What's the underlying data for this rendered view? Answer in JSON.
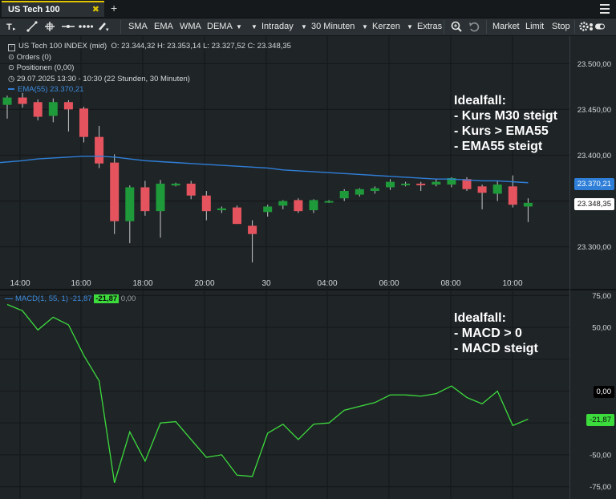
{
  "tab": {
    "title": "US Tech 100",
    "close_glyph": "✖",
    "add_glyph": "+"
  },
  "menu_icon": "hamburger-menu-icon",
  "toolbar": {
    "indicators": [
      "SMA",
      "EMA",
      "WMA",
      "DEMA"
    ],
    "interval": "Intraday",
    "period": "30 Minuten",
    "chart_type": "Kerzen",
    "extras": "Extras",
    "orders": [
      "Market",
      "Limit",
      "Stop"
    ],
    "icons": [
      "text-tool-icon",
      "line-tool-icon",
      "crosshair-tool-icon",
      "horizontal-line-icon",
      "dotted-line-icon",
      "pencil-icon",
      "zoom-icon",
      "undo-icon",
      "settings-toggle-icon"
    ]
  },
  "legend": {
    "instrument": "US Tech 100 INDEX (mid)",
    "ohlc": "O: 23.344,32  H: 23.353,14  L: 23.327,52  C: 23.348,35",
    "orders": "Orders (0)",
    "positions": "Positionen (0,00)",
    "timerange": "29.07.2025 13:30 - 10:30  (22 Stunden, 30 Minuten)",
    "ema": "EMA(55)  23.370,21"
  },
  "macd_legend": {
    "label": "MACD(1, 55, 1) -21,87",
    "value": "-21,87",
    "signal": "0,00"
  },
  "annotations": {
    "price": [
      "Idealfall:",
      "- Kurs M30 steigt",
      "- Kurs > EMA55",
      "- EMA55 steigt"
    ],
    "macd": [
      "Idealfall:",
      "- MACD > 0",
      "- MACD steigt"
    ]
  },
  "badges": {
    "ema": "23.370,21",
    "last": "23.348,35",
    "macd_zero": "0,00",
    "macd_value": "-21,87"
  },
  "colors": {
    "up": "#1f9a3a",
    "down": "#e5545e",
    "ema": "#2f7fd8",
    "macd": "#3ddc3d",
    "accent": "#e0c400"
  },
  "chart_data": {
    "type": "candlestick",
    "price_axis": {
      "ticks": [
        23300,
        23350,
        23400,
        23450,
        23500
      ],
      "tick_labels": [
        "23.300,00",
        "23.350,00",
        "23.400,00",
        "23.450,00",
        "23.500,00"
      ]
    },
    "time_labels": [
      "14:00",
      "16:00",
      "18:00",
      "20:00",
      "30",
      "04:00",
      "06:00",
      "08:00",
      "10:00"
    ],
    "candles": [
      {
        "o": 23455,
        "h": 23465,
        "l": 23440,
        "c": 23463
      },
      {
        "o": 23463,
        "h": 23468,
        "l": 23452,
        "c": 23456
      },
      {
        "o": 23458,
        "h": 23461,
        "l": 23438,
        "c": 23442
      },
      {
        "o": 23443,
        "h": 23462,
        "l": 23436,
        "c": 23458
      },
      {
        "o": 23458,
        "h": 23460,
        "l": 23426,
        "c": 23450
      },
      {
        "o": 23451,
        "h": 23453,
        "l": 23414,
        "c": 23420
      },
      {
        "o": 23420,
        "h": 23432,
        "l": 23386,
        "c": 23391
      },
      {
        "o": 23392,
        "h": 23401,
        "l": 23314,
        "c": 23328
      },
      {
        "o": 23328,
        "h": 23367,
        "l": 23304,
        "c": 23365
      },
      {
        "o": 23365,
        "h": 23372,
        "l": 23334,
        "c": 23339
      },
      {
        "o": 23339,
        "h": 23373,
        "l": 23310,
        "c": 23369
      },
      {
        "o": 23367,
        "h": 23370,
        "l": 23366,
        "c": 23369
      },
      {
        "o": 23369,
        "h": 23372,
        "l": 23352,
        "c": 23356
      },
      {
        "o": 23356,
        "h": 23361,
        "l": 23329,
        "c": 23339
      },
      {
        "o": 23340,
        "h": 23344,
        "l": 23337,
        "c": 23342
      },
      {
        "o": 23343,
        "h": 23345,
        "l": 23325,
        "c": 23325
      },
      {
        "o": 23323,
        "h": 23329,
        "l": 23283,
        "c": 23314
      },
      {
        "o": 23338,
        "h": 23346,
        "l": 23333,
        "c": 23344
      },
      {
        "o": 23345,
        "h": 23351,
        "l": 23341,
        "c": 23350
      },
      {
        "o": 23351,
        "h": 23353,
        "l": 23337,
        "c": 23339
      },
      {
        "o": 23340,
        "h": 23352,
        "l": 23337,
        "c": 23351
      },
      {
        "o": 23350,
        "h": 23351,
        "l": 23348,
        "c": 23350
      },
      {
        "o": 23353,
        "h": 23363,
        "l": 23350,
        "c": 23361
      },
      {
        "o": 23357,
        "h": 23364,
        "l": 23355,
        "c": 23363
      },
      {
        "o": 23361,
        "h": 23366,
        "l": 23358,
        "c": 23364
      },
      {
        "o": 23365,
        "h": 23374,
        "l": 23362,
        "c": 23371
      },
      {
        "o": 23369,
        "h": 23371,
        "l": 23366,
        "c": 23369
      },
      {
        "o": 23369,
        "h": 23371,
        "l": 23361,
        "c": 23368
      },
      {
        "o": 23368,
        "h": 23374,
        "l": 23366,
        "c": 23371
      },
      {
        "o": 23368,
        "h": 23376,
        "l": 23365,
        "c": 23375
      },
      {
        "o": 23374,
        "h": 23376,
        "l": 23361,
        "c": 23363
      },
      {
        "o": 23366,
        "h": 23368,
        "l": 23341,
        "c": 23359
      },
      {
        "o": 23358,
        "h": 23372,
        "l": 23350,
        "c": 23368
      },
      {
        "o": 23366,
        "h": 23378,
        "l": 23343,
        "c": 23346
      },
      {
        "o": 23344,
        "h": 23353,
        "l": 23327,
        "c": 23348
      }
    ],
    "ema": [
      23392,
      23394,
      23396,
      23397,
      23398,
      23399,
      23399,
      23398,
      23396,
      23394,
      23393,
      23392,
      23391,
      23390,
      23389,
      23388,
      23387,
      23386,
      23384,
      23383,
      23382,
      23381,
      23380,
      23379,
      23378,
      23377,
      23376,
      23375,
      23374,
      23374,
      23373,
      23372,
      23372,
      23371,
      23370
    ],
    "macd_axis": {
      "ticks": [
        -75,
        -50,
        -25,
        0,
        25,
        50,
        75
      ],
      "tick_labels": [
        "-75,00",
        "-50,00",
        "",
        "",
        "",
        "50,00",
        "75,00"
      ]
    },
    "macd": [
      68,
      63,
      48,
      58,
      52,
      28,
      8,
      -72,
      -32,
      -55,
      -25,
      -24,
      -38,
      -52,
      -50,
      -66,
      -67,
      -33,
      -26,
      -38,
      -26,
      -25,
      -15,
      -12,
      -9,
      -3,
      -3,
      -4,
      -2,
      4,
      -5,
      -10,
      0,
      -27,
      -22
    ]
  }
}
